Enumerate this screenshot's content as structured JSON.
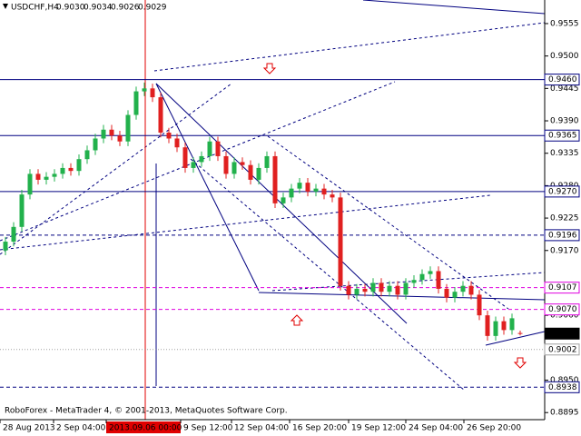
{
  "chart_data": {
    "type": "candlestick",
    "title": "USDCHF,H4",
    "quote": [
      "0.9030",
      "0.9034",
      "0.9026",
      "0.9029"
    ],
    "footer": "RoboForex - MetaTrader 4, © 2001-2013, MetaQuotes Software Corp.",
    "up_color": "#22b14c",
    "down_color": "#e02020",
    "ylim": [
      0.8883,
      0.9595
    ],
    "yticks": [
      0.9555,
      {
        "value": 0.95,
        "label": "0.9500"
      },
      0.9445,
      {
        "value": 0.939,
        "label": "0.9390"
      },
      0.9335,
      {
        "value": 0.928,
        "label": "0.9280"
      },
      0.9225,
      {
        "value": 0.917,
        "label": "0.9170"
      },
      {
        "value": 0.906,
        "label": "0.9060"
      },
      {
        "value": 0.895,
        "label": "0.8950"
      },
      0.8895
    ],
    "levels": [
      {
        "value": 0.946,
        "label": "0.9460",
        "color": "#000080",
        "style": "solid"
      },
      {
        "value": 0.9365,
        "label": "0.9365",
        "color": "#000080",
        "style": "solid"
      },
      {
        "value": 0.927,
        "label": "0.9270",
        "color": "#000080",
        "style": "solid"
      },
      {
        "value": 0.9196,
        "label": "0.9196",
        "color": "#000080",
        "style": "dashed"
      },
      {
        "value": 0.9107,
        "label": "0.9107",
        "color": "#e000e0",
        "style": "dashed"
      },
      {
        "value": 0.907,
        "label": "0.9070",
        "color": "#e000e0",
        "style": "dashed"
      },
      {
        "value": 0.9029,
        "label": "0.9029",
        "color": "#000000",
        "style": "current"
      },
      {
        "value": 0.9002,
        "label": "0.9002",
        "color": "#a0a0a0",
        "style": "dotted"
      },
      {
        "value": 0.8938,
        "label": "0.8938",
        "color": "#000080",
        "style": "dashed"
      }
    ],
    "time_labels": [
      "28 Aug 2013",
      "2 Sep 04:00",
      "2013.09.06 00:00",
      "9 Sep 12:00",
      "12 Sep 04:00",
      "16 Sep 20:00",
      "19 Sep 12:00",
      "24 Sep 04:00",
      "26 Sep 20:00"
    ],
    "open": [
      0.917,
      0.9185,
      0.921,
      0.9265,
      0.93,
      0.929,
      0.9295,
      0.93,
      0.931,
      0.9305,
      0.9325,
      0.934,
      0.936,
      0.9375,
      0.9365,
      0.9355,
      0.94,
      0.944,
      0.9445,
      0.943,
      0.937,
      0.936,
      0.9345,
      0.931,
      0.932,
      0.933,
      0.9355,
      0.933,
      0.93,
      0.932,
      0.9315,
      0.929,
      0.931,
      0.933,
      0.925,
      0.926,
      0.9275,
      0.9285,
      0.927,
      0.9275,
      0.9265,
      0.926,
      0.911,
      0.9095,
      0.9105,
      0.91,
      0.9115,
      0.91,
      0.911,
      0.9095,
      0.9115,
      0.912,
      0.913,
      0.9135,
      0.9105,
      0.909,
      0.91,
      0.911,
      0.9095,
      0.906,
      0.9025,
      0.905,
      0.9035,
      0.903
    ],
    "high": [
      0.9193,
      0.9218,
      0.9273,
      0.9308,
      0.9308,
      0.9303,
      0.9308,
      0.9318,
      0.9318,
      0.9333,
      0.9348,
      0.9368,
      0.9383,
      0.9383,
      0.9373,
      0.9408,
      0.9448,
      0.9455,
      0.9453,
      0.9438,
      0.9378,
      0.9368,
      0.9353,
      0.9328,
      0.9338,
      0.9363,
      0.9363,
      0.9338,
      0.9328,
      0.9328,
      0.9323,
      0.9318,
      0.9338,
      0.9338,
      0.9268,
      0.9283,
      0.9293,
      0.9293,
      0.9283,
      0.9283,
      0.9273,
      0.9268,
      0.9118,
      0.9113,
      0.9113,
      0.9123,
      0.9123,
      0.9118,
      0.9118,
      0.9123,
      0.9128,
      0.9138,
      0.9143,
      0.9143,
      0.9113,
      0.9108,
      0.9118,
      0.9118,
      0.9103,
      0.9068,
      0.9058,
      0.9058,
      0.9063,
      0.9034
    ],
    "low": [
      0.9162,
      0.9177,
      0.9202,
      0.9257,
      0.9282,
      0.9282,
      0.9287,
      0.9292,
      0.9297,
      0.9297,
      0.9317,
      0.9332,
      0.9352,
      0.9357,
      0.9347,
      0.9347,
      0.9392,
      0.9432,
      0.9422,
      0.9362,
      0.9352,
      0.9337,
      0.9302,
      0.9302,
      0.9312,
      0.9322,
      0.9322,
      0.9292,
      0.9292,
      0.9307,
      0.9282,
      0.9282,
      0.9302,
      0.9242,
      0.9242,
      0.9252,
      0.9267,
      0.9262,
      0.9262,
      0.9257,
      0.9252,
      0.9102,
      0.9087,
      0.9087,
      0.9092,
      0.9092,
      0.9092,
      0.9092,
      0.9087,
      0.9087,
      0.9107,
      0.9112,
      0.9122,
      0.9097,
      0.9082,
      0.9082,
      0.9092,
      0.9087,
      0.9052,
      0.9017,
      0.9017,
      0.9027,
      0.9027,
      0.9026
    ],
    "close": [
      0.9185,
      0.921,
      0.9265,
      0.93,
      0.929,
      0.9295,
      0.93,
      0.931,
      0.9305,
      0.9325,
      0.934,
      0.936,
      0.9375,
      0.9365,
      0.9355,
      0.94,
      0.944,
      0.9445,
      0.943,
      0.937,
      0.936,
      0.9345,
      0.931,
      0.932,
      0.933,
      0.9355,
      0.933,
      0.93,
      0.932,
      0.9315,
      0.929,
      0.931,
      0.933,
      0.925,
      0.926,
      0.9275,
      0.9285,
      0.927,
      0.9275,
      0.9265,
      0.926,
      0.911,
      0.9095,
      0.9105,
      0.91,
      0.9115,
      0.91,
      0.911,
      0.9095,
      0.9115,
      0.912,
      0.913,
      0.9135,
      0.9105,
      0.909,
      0.91,
      0.911,
      0.9095,
      0.906,
      0.9025,
      0.905,
      0.9035,
      0.9055,
      0.9029
    ]
  }
}
